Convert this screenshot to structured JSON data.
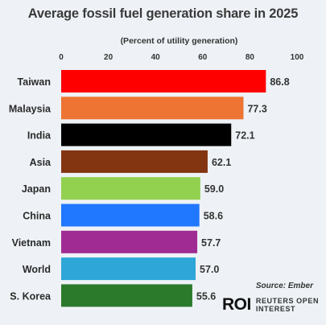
{
  "chart_data": {
    "type": "bar",
    "orientation": "horizontal",
    "title": "Average fossil fuel generation share in 2025",
    "subtitle": "(Percent of utility generation)",
    "categories": [
      "Taiwan",
      "Malaysia",
      "India",
      "Asia",
      "Japan",
      "China",
      "Vietnam",
      "World",
      "S. Korea"
    ],
    "values": [
      86.8,
      77.3,
      72.1,
      62.1,
      59.0,
      58.6,
      57.7,
      57.0,
      55.6
    ],
    "value_labels": [
      "86.8",
      "77.3",
      "72.1",
      "62.1",
      "59.0",
      "58.6",
      "57.7",
      "57.0",
      "55.6"
    ],
    "colors": [
      "#ff0000",
      "#ed7432",
      "#000000",
      "#833511",
      "#92d050",
      "#1f78ff",
      "#a02b93",
      "#2ea6d8",
      "#2b7a2b"
    ],
    "xlim": [
      0,
      100
    ],
    "xticks": [
      "0",
      "20",
      "40",
      "60",
      "80",
      "100"
    ],
    "xtick_values": [
      0,
      20,
      40,
      60,
      80,
      100
    ],
    "axis_position": "top",
    "grid": false,
    "legend": "none"
  },
  "source": "Source: Ember",
  "logo": {
    "mark": "ROI",
    "line1": "REUTERS OPEN",
    "line2": "INTEREST"
  }
}
